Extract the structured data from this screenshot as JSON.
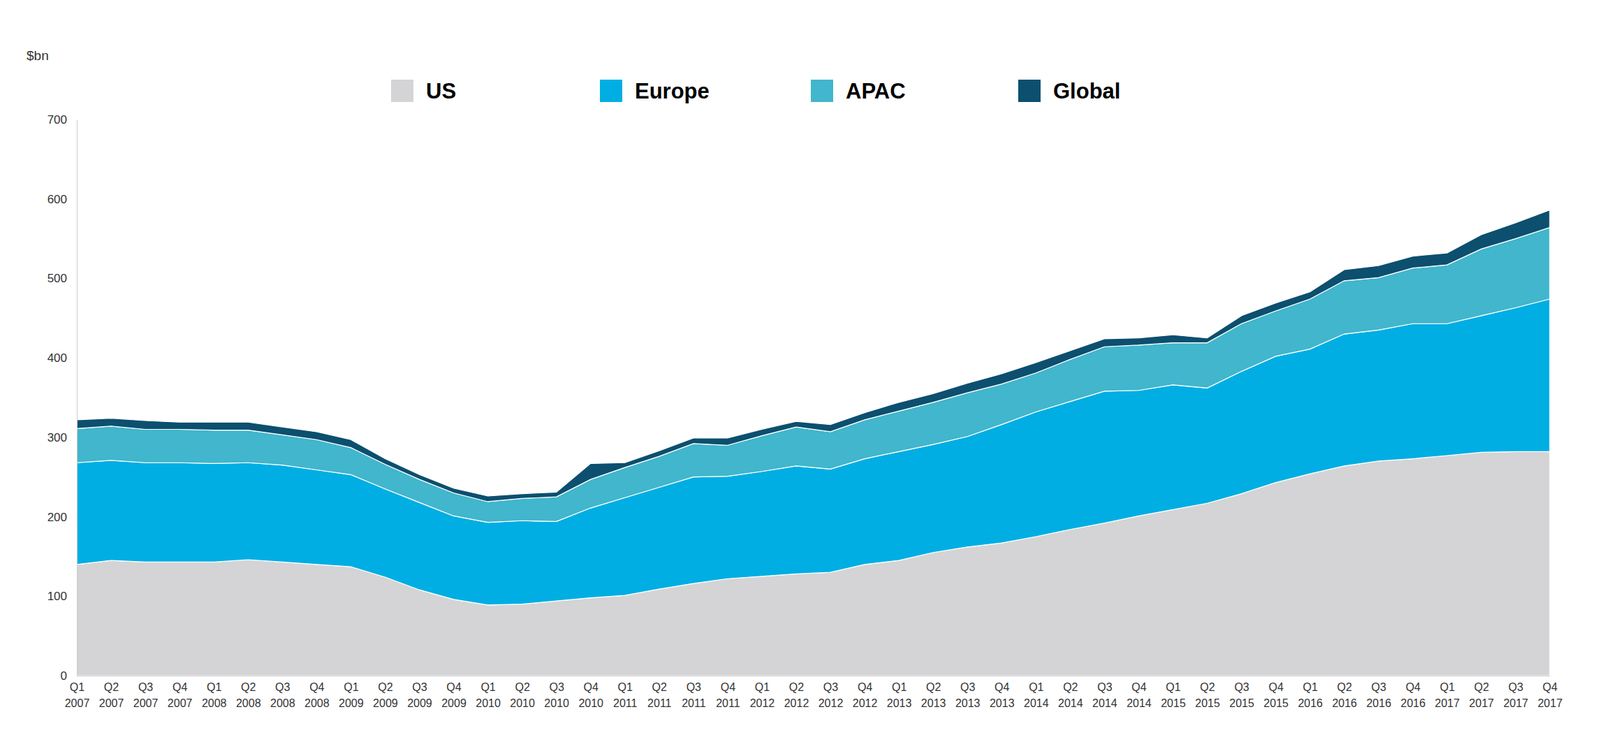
{
  "chart_data": {
    "type": "area",
    "stacked": true,
    "grid": false,
    "legend": "top",
    "y_label": "$bn",
    "ylim": [
      0,
      700
    ],
    "yticks": [
      0,
      100,
      200,
      300,
      400,
      500,
      600,
      700
    ],
    "categories": [
      "Q1 2007",
      "Q2 2007",
      "Q3 2007",
      "Q4 2007",
      "Q1 2008",
      "Q2 2008",
      "Q3 2008",
      "Q4 2008",
      "Q1 2009",
      "Q2 2009",
      "Q3 2009",
      "Q4 2009",
      "Q1 2010",
      "Q2 2010",
      "Q3 2010",
      "Q4 2010",
      "Q1 2011",
      "Q2 2011",
      "Q3 2011",
      "Q4 2011",
      "Q1 2012",
      "Q2 2012",
      "Q3 2012",
      "Q4 2012",
      "Q1 2013",
      "Q2 2013",
      "Q3 2013",
      "Q4 2013",
      "Q1 2014",
      "Q2 2014",
      "Q3 2014",
      "Q4 2014",
      "Q1 2015",
      "Q2 2015",
      "Q3 2015",
      "Q4 2015",
      "Q1 2016",
      "Q2 2016",
      "Q3 2016",
      "Q4 2016",
      "Q1 2017",
      "Q2 2017",
      "Q3 2017",
      "Q4 2017"
    ],
    "series": [
      {
        "name": "US",
        "color": "#d4d4d6",
        "values": [
          140,
          145,
          143,
          143,
          143,
          146,
          143,
          140,
          137,
          124,
          108,
          96,
          89,
          90,
          94,
          98,
          101,
          109,
          116,
          122,
          125,
          128,
          130,
          140,
          145,
          155,
          162,
          167,
          175,
          184,
          192,
          201,
          209,
          217,
          229,
          243,
          254,
          264,
          270,
          273,
          277,
          281,
          282,
          282
        ]
      },
      {
        "name": "Europe",
        "color": "#00aee3",
        "values": [
          128,
          126,
          125,
          125,
          124,
          122,
          122,
          119,
          116,
          111,
          110,
          105,
          104,
          105,
          100,
          113,
          123,
          128,
          134,
          129,
          132,
          136,
          130,
          133,
          137,
          136,
          139,
          149,
          157,
          161,
          166,
          158,
          157,
          145,
          154,
          159,
          157,
          166,
          165,
          170,
          166,
          172,
          181,
          192
        ]
      },
      {
        "name": "APAC",
        "color": "#41b6cc",
        "values": [
          43,
          43,
          42,
          42,
          42,
          41,
          38,
          38,
          34,
          31,
          29,
          29,
          26,
          28,
          31,
          36,
          38,
          39,
          42,
          39,
          45,
          49,
          47,
          49,
          51,
          53,
          55,
          51,
          49,
          53,
          56,
          57,
          53,
          57,
          60,
          57,
          63,
          67,
          66,
          70,
          74,
          84,
          87,
          90
        ]
      },
      {
        "name": "Global",
        "color": "#0c4f6e",
        "values": [
          11,
          10,
          11,
          9,
          10,
          10,
          10,
          10,
          10,
          7,
          6,
          6,
          7,
          6,
          6,
          20,
          6,
          7,
          7,
          9,
          8,
          7,
          9,
          9,
          11,
          11,
          12,
          13,
          13,
          11,
          10,
          9,
          10,
          6,
          10,
          10,
          9,
          14,
          15,
          15,
          15,
          18,
          20,
          22
        ]
      }
    ]
  }
}
